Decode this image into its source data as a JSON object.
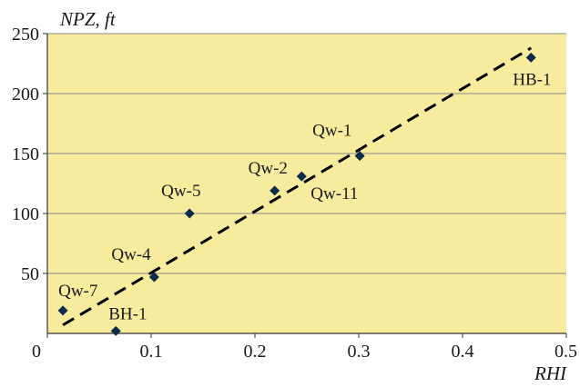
{
  "colors": {
    "plot_bg": "#f7ec9e",
    "grid": "#8a8a8a",
    "point": "#0d2a4a",
    "trend": "#000000"
  },
  "chart_data": {
    "type": "scatter",
    "xlabel": "RHI",
    "ylabel": "NPZ, ft",
    "xlim": [
      0,
      0.5
    ],
    "ylim": [
      0,
      250
    ],
    "x_ticks": [
      "0",
      "0.1",
      "0.2",
      "0.3",
      "0.4",
      "0.5"
    ],
    "y_ticks": [
      "50",
      "100",
      "150",
      "200",
      "250"
    ],
    "grid": "horizontal",
    "points": [
      {
        "label": "Qw-7",
        "x": 0.015,
        "y": 19
      },
      {
        "label": "BH-1",
        "x": 0.066,
        "y": 2
      },
      {
        "label": "Qw-4",
        "x": 0.103,
        "y": 47
      },
      {
        "label": "Qw-5",
        "x": 0.137,
        "y": 100
      },
      {
        "label": "Qw-2",
        "x": 0.219,
        "y": 119
      },
      {
        "label": "Qw-11",
        "x": 0.245,
        "y": 131
      },
      {
        "label": "Qw-1",
        "x": 0.301,
        "y": 148
      },
      {
        "label": "HB-1",
        "x": 0.466,
        "y": 230
      }
    ],
    "trendline": {
      "style": "dashed",
      "x": [
        0.015,
        0.466
      ],
      "y": [
        7,
        238
      ]
    }
  }
}
